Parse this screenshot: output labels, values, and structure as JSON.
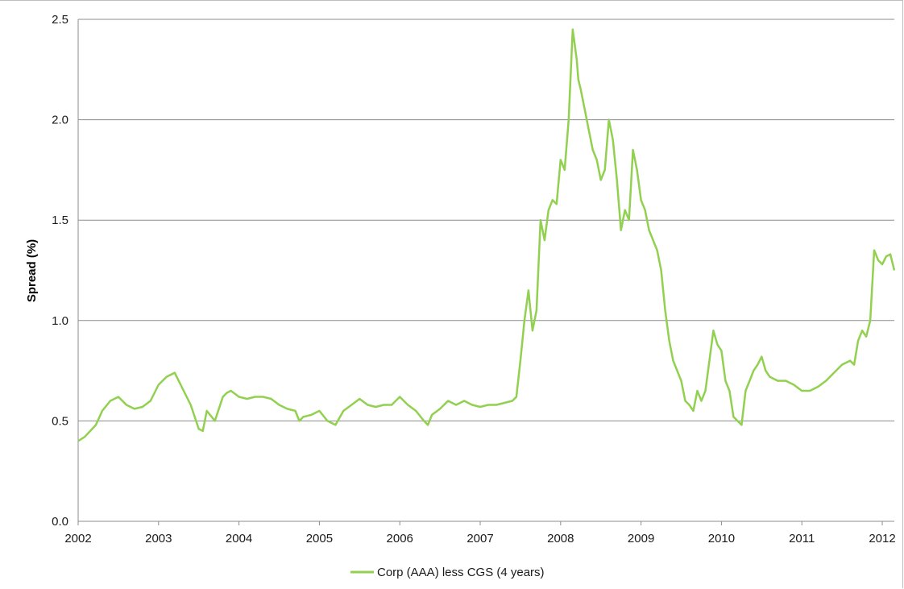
{
  "chart_data": {
    "type": "line",
    "title": "",
    "xlabel": "",
    "ylabel": "Spread (%)",
    "xlim": [
      2002,
      2012.15
    ],
    "ylim": [
      0,
      2.5
    ],
    "x_ticks": [
      2002,
      2003,
      2004,
      2005,
      2006,
      2007,
      2008,
      2009,
      2010,
      2011,
      2012
    ],
    "x_tick_labels": [
      "2002",
      "2003",
      "2004",
      "2005",
      "2006",
      "2007",
      "2008",
      "2009",
      "2010",
      "2011",
      "2012"
    ],
    "y_ticks": [
      0,
      0.5,
      1.0,
      1.5,
      2.0,
      2.5
    ],
    "y_tick_labels": [
      "0.0",
      "0.5",
      "1.0",
      "1.5",
      "2.0",
      "2.5"
    ],
    "grid": "horizontal",
    "legend_position": "bottom-center",
    "series": [
      {
        "name": "Corp (AAA) less CGS (4 years)",
        "color": "#92d050",
        "x": [
          2002.0,
          2002.08,
          2002.15,
          2002.22,
          2002.3,
          2002.4,
          2002.5,
          2002.6,
          2002.7,
          2002.8,
          2002.9,
          2003.0,
          2003.1,
          2003.2,
          2003.3,
          2003.4,
          2003.5,
          2003.55,
          2003.6,
          2003.7,
          2003.8,
          2003.85,
          2003.9,
          2004.0,
          2004.1,
          2004.2,
          2004.3,
          2004.4,
          2004.5,
          2004.6,
          2004.7,
          2004.75,
          2004.8,
          2004.9,
          2005.0,
          2005.1,
          2005.2,
          2005.3,
          2005.4,
          2005.5,
          2005.6,
          2005.7,
          2005.8,
          2005.9,
          2006.0,
          2006.1,
          2006.2,
          2006.3,
          2006.35,
          2006.4,
          2006.5,
          2006.6,
          2006.7,
          2006.8,
          2006.9,
          2007.0,
          2007.1,
          2007.2,
          2007.3,
          2007.4,
          2007.45,
          2007.5,
          2007.55,
          2007.6,
          2007.65,
          2007.7,
          2007.75,
          2007.8,
          2007.85,
          2007.9,
          2007.95,
          2008.0,
          2008.05,
          2008.1,
          2008.15,
          2008.2,
          2008.22,
          2008.25,
          2008.3,
          2008.35,
          2008.4,
          2008.45,
          2008.5,
          2008.55,
          2008.6,
          2008.65,
          2008.7,
          2008.75,
          2008.8,
          2008.85,
          2008.9,
          2008.95,
          2009.0,
          2009.05,
          2009.1,
          2009.15,
          2009.2,
          2009.25,
          2009.3,
          2009.35,
          2009.4,
          2009.45,
          2009.5,
          2009.55,
          2009.6,
          2009.65,
          2009.7,
          2009.75,
          2009.8,
          2009.85,
          2009.9,
          2009.95,
          2010.0,
          2010.05,
          2010.1,
          2010.15,
          2010.2,
          2010.25,
          2010.3,
          2010.35,
          2010.4,
          2010.45,
          2010.5,
          2010.55,
          2010.6,
          2010.7,
          2010.8,
          2010.9,
          2011.0,
          2011.1,
          2011.2,
          2011.3,
          2011.4,
          2011.5,
          2011.6,
          2011.65,
          2011.7,
          2011.75,
          2011.8,
          2011.85,
          2011.9,
          2011.95,
          2012.0,
          2012.05,
          2012.1,
          2012.15
        ],
        "values": [
          0.4,
          0.42,
          0.45,
          0.48,
          0.55,
          0.6,
          0.62,
          0.58,
          0.56,
          0.57,
          0.6,
          0.68,
          0.72,
          0.74,
          0.66,
          0.58,
          0.46,
          0.45,
          0.55,
          0.5,
          0.62,
          0.64,
          0.65,
          0.62,
          0.61,
          0.62,
          0.62,
          0.61,
          0.58,
          0.56,
          0.55,
          0.5,
          0.52,
          0.53,
          0.55,
          0.5,
          0.48,
          0.55,
          0.58,
          0.61,
          0.58,
          0.57,
          0.58,
          0.58,
          0.62,
          0.58,
          0.55,
          0.5,
          0.48,
          0.53,
          0.56,
          0.6,
          0.58,
          0.6,
          0.58,
          0.57,
          0.58,
          0.58,
          0.59,
          0.6,
          0.62,
          0.8,
          1.0,
          1.15,
          0.95,
          1.05,
          1.5,
          1.4,
          1.55,
          1.6,
          1.58,
          1.8,
          1.75,
          2.0,
          2.45,
          2.3,
          2.2,
          2.15,
          2.05,
          1.95,
          1.85,
          1.8,
          1.7,
          1.75,
          2.0,
          1.9,
          1.7,
          1.45,
          1.55,
          1.5,
          1.85,
          1.75,
          1.6,
          1.55,
          1.45,
          1.4,
          1.35,
          1.25,
          1.05,
          0.9,
          0.8,
          0.75,
          0.7,
          0.6,
          0.58,
          0.55,
          0.65,
          0.6,
          0.65,
          0.8,
          0.95,
          0.88,
          0.85,
          0.7,
          0.65,
          0.52,
          0.5,
          0.48,
          0.65,
          0.7,
          0.75,
          0.78,
          0.82,
          0.75,
          0.72,
          0.7,
          0.7,
          0.68,
          0.65,
          0.65,
          0.67,
          0.7,
          0.74,
          0.78,
          0.8,
          0.78,
          0.9,
          0.95,
          0.92,
          1.0,
          1.35,
          1.3,
          1.28,
          1.32,
          1.33,
          1.25
        ]
      }
    ]
  }
}
